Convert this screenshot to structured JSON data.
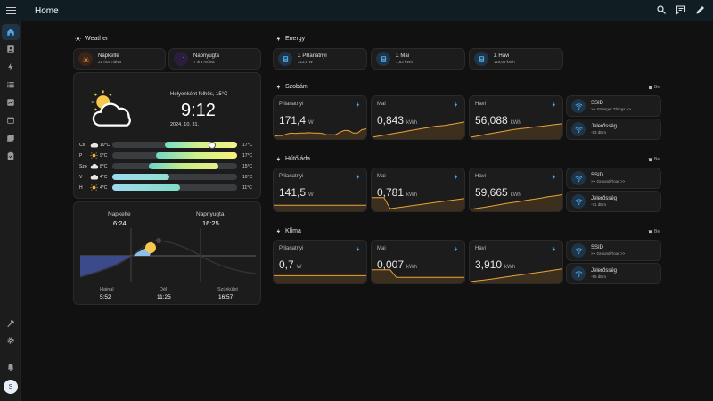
{
  "header": {
    "title": "Home"
  },
  "sidebar": {
    "avatar_letter": "S"
  },
  "weather": {
    "title": "Weather",
    "sunrise": {
      "label": "Napkelte",
      "sub": "21 óra múlva"
    },
    "sunset": {
      "label": "Napnyugta",
      "sub": "7 óra múlva"
    },
    "condition": "Helyenként felhős, 15°C",
    "time": "9:12",
    "date": "2024. 10. 31.",
    "forecast": [
      {
        "day": "Cs",
        "low": "10°C",
        "high": "17°C",
        "icon": "cloud-icon",
        "bar_start": 0.42,
        "bar_end": 1.0
      },
      {
        "day": "P",
        "low": "9°C",
        "high": "17°C",
        "icon": "partly-sunny-icon",
        "bar_start": 0.35,
        "bar_end": 1.0
      },
      {
        "day": "Szo",
        "low": "8°C",
        "high": "15°C",
        "icon": "cloud-icon",
        "bar_start": 0.29,
        "bar_end": 0.85
      },
      {
        "day": "V",
        "low": "4°C",
        "high": "10°C",
        "icon": "cloud-icon",
        "bar_start": 0.0,
        "bar_end": 0.46
      },
      {
        "day": "H",
        "low": "4°C",
        "high": "11°C",
        "icon": "partly-sunny-icon",
        "bar_start": 0.0,
        "bar_end": 0.54
      }
    ],
    "sun": {
      "sunrise_label": "Napkelte",
      "sunrise_time": "6:24",
      "sunset_label": "Napnyugta",
      "sunset_time": "16:25",
      "dawn_label": "Hajnal",
      "dawn_time": "5:52",
      "noon_label": "Dél",
      "noon_time": "11:25",
      "dusk_label": "Szürkület",
      "dusk_time": "16:57"
    }
  },
  "energy": {
    "title": "Energy",
    "tiles": [
      {
        "label": "Σ Pillanatnyi",
        "value": "313,6 W"
      },
      {
        "label": "Σ Mai",
        "value": "1,63 kWh"
      },
      {
        "label": "Σ Havi",
        "value": "119,66 kWh"
      }
    ]
  },
  "rooms": [
    {
      "title": "Szobám",
      "delete_label": "Be",
      "instant": {
        "label": "Pillanatnyi",
        "value": "171,4",
        "unit": "W",
        "trend": [
          0.1,
          0.15,
          0.15,
          0.25,
          0.3,
          0.28,
          0.3,
          0.3,
          0.32,
          0.3,
          0.3,
          0.28,
          0.2,
          0.2,
          0.2,
          0.35,
          0.45,
          0.45,
          0.3,
          0.3,
          0.5,
          0.55
        ]
      },
      "daily": {
        "label": "Mai",
        "value": "0,843",
        "unit": "kWh",
        "trend": [
          0.05,
          0.1,
          0.15,
          0.2,
          0.25,
          0.3,
          0.35,
          0.4,
          0.45,
          0.5,
          0.55,
          0.6,
          0.65,
          0.7,
          0.72,
          0.75,
          0.8,
          0.85,
          0.9,
          0.95
        ]
      },
      "monthly": {
        "label": "Havi",
        "value": "56,088",
        "unit": "kWh",
        "trend": [
          0.05,
          0.12,
          0.2,
          0.28,
          0.35,
          0.42,
          0.5,
          0.55,
          0.6,
          0.66,
          0.7,
          0.75,
          0.8,
          0.85
        ]
      },
      "ssid": {
        "label": "SSID",
        "value": ">> Stranger Things >>"
      },
      "signal": {
        "label": "Jelerősség",
        "value": "-53 dBm"
      }
    },
    {
      "title": "Hűtőláda",
      "delete_label": "Be",
      "instant": {
        "label": "Pillanatnyi",
        "value": "141,5",
        "unit": "W",
        "trend": [
          0.3,
          0.3,
          0.3,
          0.3,
          0.3,
          0.3,
          0.3,
          0.3,
          0.3,
          0.3,
          0.3,
          0.3,
          0.3,
          0.3,
          0.3,
          0.3,
          0.3,
          0.3,
          0.3,
          0.3
        ]
      },
      "daily": {
        "label": "Mai",
        "value": "0,781",
        "unit": "kWh",
        "trend": [
          0.75,
          0.75,
          0.75,
          0.1,
          0.15,
          0.2,
          0.25,
          0.3,
          0.35,
          0.4,
          0.45,
          0.5,
          0.55,
          0.6,
          0.65,
          0.7
        ]
      },
      "monthly": {
        "label": "Havi",
        "value": "59,665",
        "unit": "kWh",
        "trend": [
          0.05,
          0.12,
          0.18,
          0.25,
          0.32,
          0.4,
          0.46,
          0.52,
          0.6,
          0.66,
          0.72,
          0.8,
          0.86,
          0.92
        ]
      },
      "ssid": {
        "label": "SSID",
        "value": ">> GroundFloor >>"
      },
      "signal": {
        "label": "Jelerősség",
        "value": "-71 dBm"
      }
    },
    {
      "title": "Klíma",
      "delete_label": "Be",
      "instant": {
        "label": "Pillanatnyi",
        "value": "0,7",
        "unit": "W",
        "trend": [
          0.4,
          0.4,
          0.4,
          0.4,
          0.4,
          0.4,
          0.4,
          0.4,
          0.4,
          0.4,
          0.4,
          0.4,
          0.4,
          0.4,
          0.4,
          0.4
        ]
      },
      "daily": {
        "label": "Mai",
        "value": "0,007",
        "unit": "kWh",
        "trend": [
          0.75,
          0.75,
          0.75,
          0.75,
          0.3,
          0.3,
          0.3,
          0.3,
          0.3,
          0.3,
          0.3,
          0.3,
          0.3,
          0.3,
          0.3,
          0.3
        ]
      },
      "monthly": {
        "label": "Havi",
        "value": "3,910",
        "unit": "kWh",
        "trend": [
          0.05,
          0.1,
          0.14,
          0.2,
          0.26,
          0.32,
          0.38,
          0.44,
          0.5,
          0.56,
          0.62,
          0.68,
          0.74,
          0.8
        ]
      },
      "ssid": {
        "label": "SSID",
        "value": ">> GroundFloor >>"
      },
      "signal": {
        "label": "Jelerősség",
        "value": "-59 dBm"
      }
    }
  ]
}
